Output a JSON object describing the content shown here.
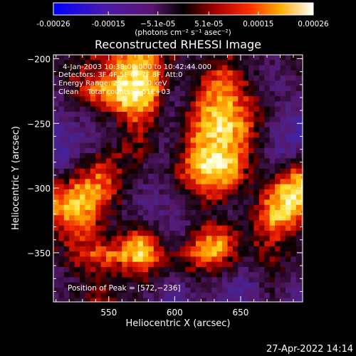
{
  "colorbar": {
    "ticks": [
      "-0.00026",
      "-0.00015",
      "−5.1e-05",
      "5.1e-05",
      "0.00015",
      "0.00026"
    ],
    "tick_values": [
      -0.00026,
      -0.00015,
      -5.1e-05,
      5.1e-05,
      0.00015,
      0.00026
    ],
    "range": [
      -0.00026,
      0.00026
    ],
    "unit_label": "(photons cm⁻² s⁻¹ asec⁻²)",
    "colormap": "blue-purple-red-yellow-white"
  },
  "chart_data": {
    "type": "heatmap",
    "title": "Reconstructed RHESSI Image",
    "xlabel": "Heliocentric X (arcsec)",
    "ylabel": "Heliocentric Y (arcsec)",
    "xlim": [
      508,
      697
    ],
    "ylim": [
      -388,
      -197
    ],
    "xticks": [
      550,
      600,
      650
    ],
    "yticks": [
      -200,
      -250,
      -300,
      -350
    ],
    "xtick_labels": [
      "550",
      "600",
      "650"
    ],
    "ytick_labels": [
      "−200",
      "−250",
      "−300",
      "−350"
    ],
    "annotations": [
      "4-Jan-2003 10:38:00.000 to 10:42:44.000",
      "Detectors: 3F 4F 5F 6F 7F 8F, Att:0",
      "Energy Range: 25.0 - 50.0 keV",
      "Clean    Total counts: 3.51E+03"
    ],
    "peak_label": "Position of Peak = [572,−236]",
    "peak": [
      572,
      -236
    ],
    "grid_x_values": [
      513,
      523,
      533,
      543,
      553,
      563,
      573,
      583,
      593,
      603,
      613,
      623,
      633,
      643,
      653,
      663,
      673,
      683,
      693
    ],
    "grid_y_values": [
      -202,
      -212,
      -222,
      -232,
      -242,
      -252,
      -262,
      -272,
      -282,
      -292,
      -302,
      -312,
      -322,
      -332,
      -342,
      -352,
      -362,
      -372,
      -382
    ],
    "grid_level": [
      [
        0.4,
        0.5,
        0.55,
        0.6,
        0.65,
        0.8,
        0.85,
        0.8,
        0.55,
        0.45,
        0.4,
        0.45,
        0.5,
        0.55,
        0.45,
        0.4,
        0.35,
        0.4,
        0.45
      ],
      [
        0.45,
        0.55,
        0.6,
        0.65,
        0.75,
        0.9,
        0.95,
        0.85,
        0.5,
        0.4,
        0.45,
        0.55,
        0.7,
        0.65,
        0.5,
        0.4,
        0.3,
        0.35,
        0.4
      ],
      [
        0.4,
        0.5,
        0.65,
        0.8,
        0.9,
        0.95,
        1.0,
        0.9,
        0.55,
        0.4,
        0.5,
        0.65,
        0.8,
        0.75,
        0.6,
        0.45,
        0.35,
        0.3,
        0.35
      ],
      [
        0.35,
        0.45,
        0.6,
        0.7,
        0.85,
        0.95,
        0.95,
        0.8,
        0.45,
        0.35,
        0.55,
        0.75,
        0.85,
        0.8,
        0.65,
        0.5,
        0.4,
        0.35,
        0.3
      ],
      [
        0.3,
        0.35,
        0.4,
        0.5,
        0.55,
        0.7,
        0.8,
        0.65,
        0.4,
        0.4,
        0.6,
        0.8,
        0.9,
        0.85,
        0.7,
        0.55,
        0.4,
        0.3,
        0.25
      ],
      [
        0.25,
        0.3,
        0.3,
        0.35,
        0.4,
        0.55,
        0.65,
        0.55,
        0.35,
        0.45,
        0.65,
        0.85,
        0.95,
        0.9,
        0.75,
        0.55,
        0.35,
        0.25,
        0.2
      ],
      [
        0.2,
        0.25,
        0.3,
        0.35,
        0.4,
        0.5,
        0.6,
        0.5,
        0.35,
        0.45,
        0.7,
        0.85,
        0.9,
        0.85,
        0.7,
        0.5,
        0.35,
        0.25,
        0.2
      ],
      [
        0.2,
        0.25,
        0.35,
        0.45,
        0.5,
        0.55,
        0.55,
        0.45,
        0.35,
        0.5,
        0.75,
        0.9,
        0.95,
        0.85,
        0.65,
        0.45,
        0.3,
        0.25,
        0.3
      ],
      [
        0.3,
        0.4,
        0.55,
        0.65,
        0.6,
        0.5,
        0.45,
        0.4,
        0.4,
        0.55,
        0.8,
        0.95,
        1.0,
        0.9,
        0.65,
        0.45,
        0.35,
        0.4,
        0.55
      ],
      [
        0.45,
        0.6,
        0.7,
        0.75,
        0.65,
        0.5,
        0.4,
        0.35,
        0.4,
        0.55,
        0.75,
        0.85,
        0.9,
        0.8,
        0.55,
        0.45,
        0.5,
        0.7,
        0.85
      ],
      [
        0.65,
        0.8,
        0.85,
        0.8,
        0.65,
        0.45,
        0.35,
        0.3,
        0.35,
        0.45,
        0.6,
        0.7,
        0.7,
        0.6,
        0.45,
        0.5,
        0.7,
        0.9,
        0.95
      ],
      [
        0.8,
        0.9,
        0.85,
        0.7,
        0.55,
        0.4,
        0.3,
        0.3,
        0.3,
        0.35,
        0.45,
        0.55,
        0.5,
        0.45,
        0.4,
        0.55,
        0.8,
        0.95,
        0.9
      ],
      [
        0.75,
        0.85,
        0.8,
        0.6,
        0.45,
        0.4,
        0.35,
        0.35,
        0.3,
        0.3,
        0.4,
        0.45,
        0.4,
        0.4,
        0.45,
        0.6,
        0.85,
        0.9,
        0.75
      ],
      [
        0.6,
        0.75,
        0.7,
        0.55,
        0.45,
        0.5,
        0.55,
        0.45,
        0.35,
        0.3,
        0.45,
        0.6,
        0.65,
        0.55,
        0.5,
        0.6,
        0.75,
        0.7,
        0.55
      ],
      [
        0.5,
        0.65,
        0.65,
        0.6,
        0.6,
        0.7,
        0.85,
        0.7,
        0.45,
        0.4,
        0.6,
        0.8,
        0.85,
        0.65,
        0.5,
        0.55,
        0.6,
        0.55,
        0.45
      ],
      [
        0.45,
        0.6,
        0.7,
        0.75,
        0.75,
        0.85,
        0.95,
        0.8,
        0.55,
        0.5,
        0.7,
        0.85,
        0.8,
        0.6,
        0.45,
        0.5,
        0.55,
        0.5,
        0.4
      ],
      [
        0.4,
        0.5,
        0.55,
        0.6,
        0.55,
        0.6,
        0.7,
        0.6,
        0.45,
        0.45,
        0.55,
        0.6,
        0.55,
        0.45,
        0.35,
        0.4,
        0.5,
        0.45,
        0.35
      ],
      [
        0.35,
        0.4,
        0.45,
        0.5,
        0.45,
        0.45,
        0.5,
        0.45,
        0.35,
        0.3,
        0.4,
        0.4,
        0.35,
        0.3,
        0.25,
        0.35,
        0.45,
        0.4,
        0.3
      ],
      [
        0.35,
        0.4,
        0.5,
        0.6,
        0.55,
        0.45,
        0.4,
        0.35,
        0.25,
        0.25,
        0.3,
        0.35,
        0.3,
        0.25,
        0.2,
        0.3,
        0.4,
        0.35,
        0.25
      ]
    ]
  },
  "footer": {
    "timestamp": "27-Apr-2022 14:14"
  }
}
